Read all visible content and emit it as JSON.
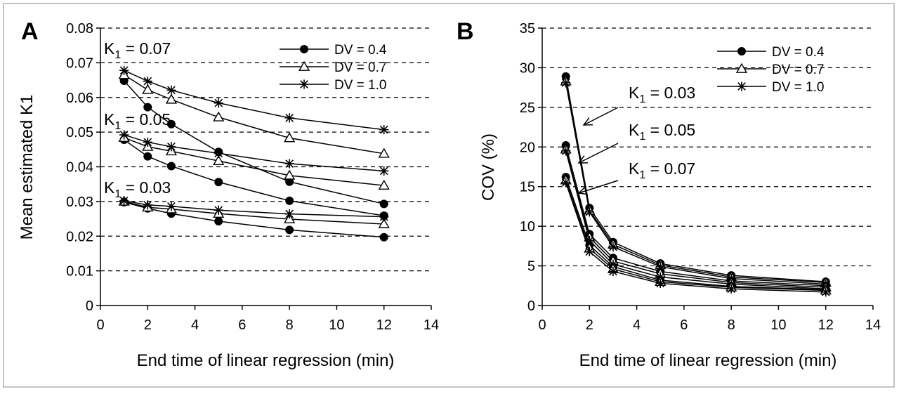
{
  "chart_data": [
    {
      "panel": "A",
      "type": "line",
      "xlabel": "End time of linear regression (min)",
      "ylabel": "Mean estimated K1",
      "xlim": [
        0,
        14
      ],
      "ylim": [
        0,
        0.08
      ],
      "xticks": [
        0,
        2,
        4,
        6,
        8,
        10,
        12,
        14
      ],
      "yticks": [
        0,
        0.01,
        0.02,
        0.03,
        0.04,
        0.05,
        0.06,
        0.07,
        0.08
      ],
      "ytick_labels": [
        "0",
        "0.01",
        "0.02",
        "0.03",
        "0.04",
        "0.05",
        "0.06",
        "0.07",
        "0.08"
      ],
      "grid": "horizontal dashed",
      "legend": "top-right",
      "legend_entries": [
        {
          "label": "DV = 0.4",
          "marker": "circle"
        },
        {
          "label": "DV = 0.7",
          "marker": "triangle"
        },
        {
          "label": "DV = 1.0",
          "marker": "star"
        }
      ],
      "annotations": [
        {
          "main": "K",
          "sub": "1",
          "rest": " = 0.07"
        },
        {
          "main": "K",
          "sub": "1",
          "rest": " = 0.05"
        },
        {
          "main": "K",
          "sub": "1",
          "rest": " = 0.03"
        }
      ],
      "x": [
        1,
        2,
        3,
        5,
        8,
        12
      ],
      "series": [
        {
          "marker": "circle",
          "values": [
            0.0648,
            0.0572,
            0.0523,
            0.0443,
            0.0357,
            0.0293
          ]
        },
        {
          "marker": "triangle",
          "values": [
            0.0665,
            0.0622,
            0.0594,
            0.0543,
            0.0483,
            0.0438
          ]
        },
        {
          "marker": "star",
          "values": [
            0.0678,
            0.0647,
            0.0621,
            0.0584,
            0.0541,
            0.0507
          ]
        },
        {
          "marker": "circle",
          "values": [
            0.0478,
            0.043,
            0.0402,
            0.0356,
            0.0302,
            0.0259
          ]
        },
        {
          "marker": "triangle",
          "values": [
            0.0484,
            0.0458,
            0.0445,
            0.0417,
            0.0375,
            0.0346
          ]
        },
        {
          "marker": "star",
          "values": [
            0.0492,
            0.0471,
            0.0458,
            0.0439,
            0.0409,
            0.0388
          ]
        },
        {
          "marker": "circle",
          "values": [
            0.0298,
            0.028,
            0.0265,
            0.0243,
            0.0218,
            0.0197
          ]
        },
        {
          "marker": "triangle",
          "values": [
            0.03,
            0.0283,
            0.0278,
            0.0265,
            0.0249,
            0.0235
          ]
        },
        {
          "marker": "star",
          "values": [
            0.0302,
            0.029,
            0.0286,
            0.0275,
            0.0264,
            0.0256
          ]
        }
      ]
    },
    {
      "panel": "B",
      "type": "line",
      "xlabel": "End time of linear regression (min)",
      "ylabel": "COV (%)",
      "xlim": [
        0,
        14
      ],
      "ylim": [
        0,
        35
      ],
      "xticks": [
        0,
        2,
        4,
        6,
        8,
        10,
        12,
        14
      ],
      "yticks": [
        0,
        5,
        10,
        15,
        20,
        25,
        30,
        35
      ],
      "ytick_labels": [
        "0",
        "5",
        "10",
        "15",
        "20",
        "25",
        "30",
        "35"
      ],
      "grid": "horizontal dashed",
      "legend": "top-right",
      "legend_entries": [
        {
          "label": "DV = 0.4",
          "marker": "circle"
        },
        {
          "label": "DV = 0.7",
          "marker": "triangle"
        },
        {
          "label": "DV = 1.0",
          "marker": "star"
        }
      ],
      "annotations": [
        {
          "main": "K",
          "sub": "1",
          "rest": " = 0.03"
        },
        {
          "main": "K",
          "sub": "1",
          "rest": " = 0.05"
        },
        {
          "main": "K",
          "sub": "1",
          "rest": " = 0.07"
        }
      ],
      "x": [
        1,
        2,
        3,
        5,
        8,
        12
      ],
      "series": [
        {
          "marker": "circle",
          "values": [
            28.9,
            12.3,
            8.0,
            5.3,
            3.8,
            3.0
          ]
        },
        {
          "marker": "triangle",
          "values": [
            28.3,
            12.0,
            7.7,
            5.1,
            3.6,
            2.9
          ]
        },
        {
          "marker": "star",
          "values": [
            28.1,
            11.8,
            7.4,
            4.9,
            3.4,
            2.7
          ]
        },
        {
          "marker": "circle",
          "values": [
            20.2,
            9.0,
            6.0,
            4.3,
            3.1,
            2.5
          ]
        },
        {
          "marker": "triangle",
          "values": [
            19.7,
            8.6,
            5.6,
            4.0,
            2.9,
            2.3
          ]
        },
        {
          "marker": "star",
          "values": [
            19.5,
            8.2,
            5.2,
            3.6,
            2.7,
            2.1
          ]
        },
        {
          "marker": "circle",
          "values": [
            16.2,
            7.6,
            4.9,
            3.2,
            2.4,
            2.0
          ]
        },
        {
          "marker": "triangle",
          "values": [
            15.8,
            7.2,
            4.6,
            3.0,
            2.3,
            1.9
          ]
        },
        {
          "marker": "star",
          "values": [
            15.5,
            6.8,
            4.3,
            2.8,
            2.1,
            1.7
          ]
        }
      ]
    }
  ]
}
